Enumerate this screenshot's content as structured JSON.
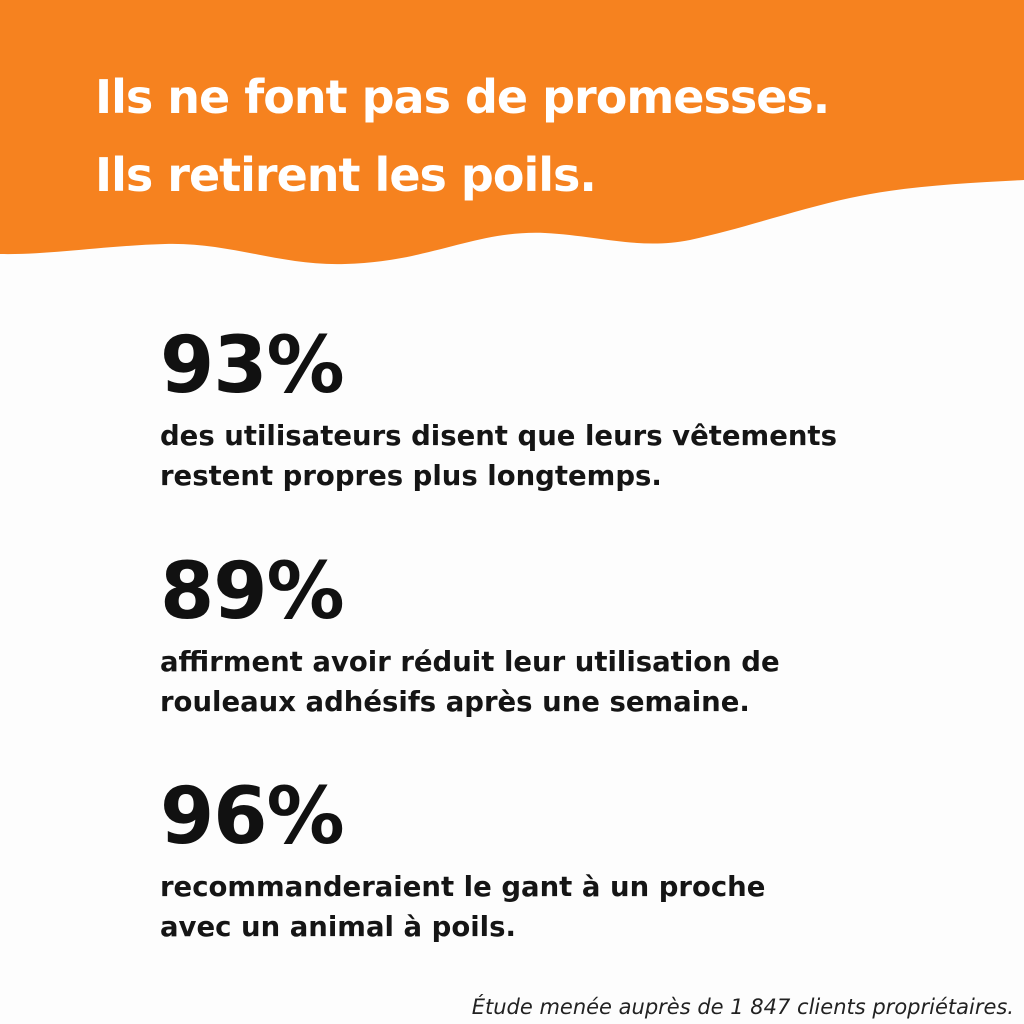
{
  "header": {
    "line1": "Ils ne font pas de promesses.",
    "line2": "Ils retirent les poils."
  },
  "stats": [
    {
      "value": "93%",
      "text_line1": "des utilisateurs disent que leurs vêtements",
      "text_line2": "restent propres plus longtemps."
    },
    {
      "value": "89%",
      "text_line1": "affirment avoir réduit leur utilisation de",
      "text_line2": "rouleaux adhésifs après une semaine."
    },
    {
      "value": "96%",
      "text_line1": "recommanderaient le gant à un proche",
      "text_line2": "avec un animal à poils."
    }
  ],
  "footnote": "Étude menée auprès de 1 847 clients propriétaires.",
  "colors": {
    "banner": "#f6821f",
    "background": "#fdfdfd",
    "text": "#111111",
    "headline": "#ffffff"
  }
}
